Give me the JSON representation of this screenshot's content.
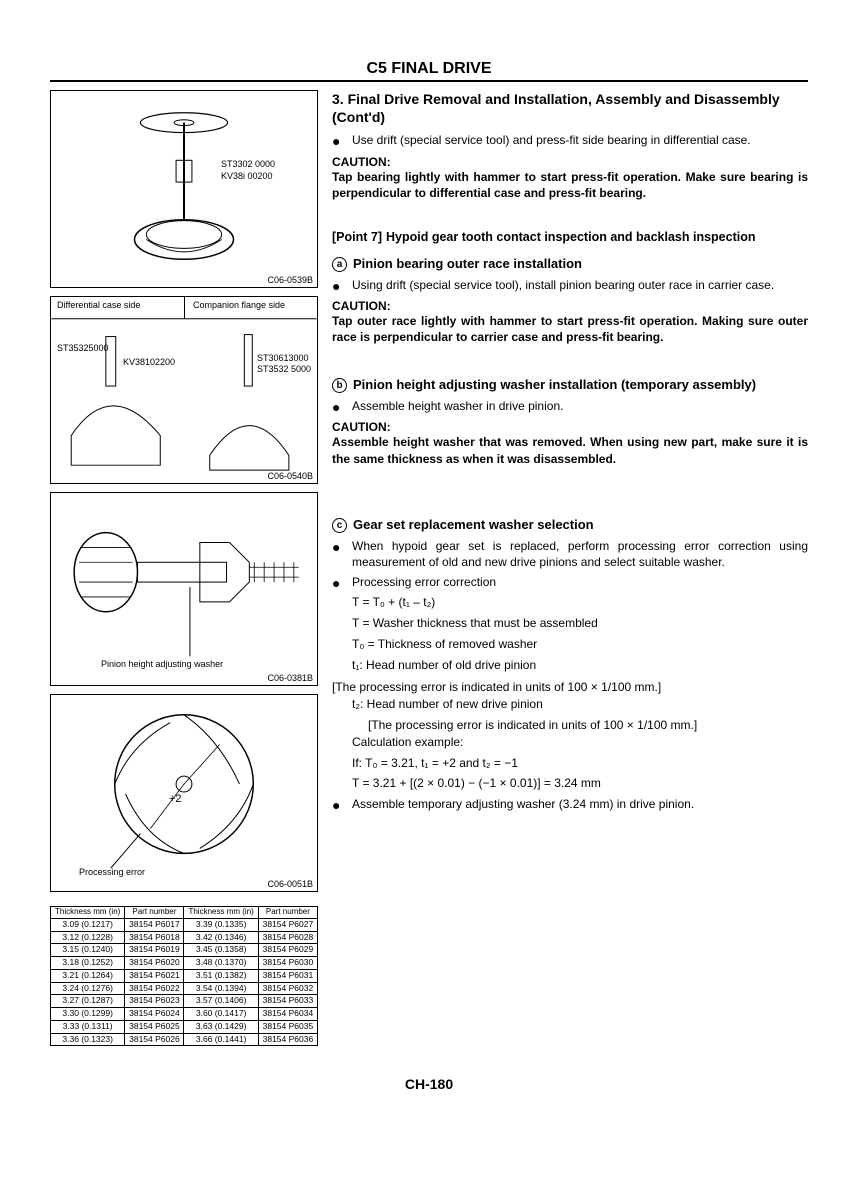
{
  "header": "C5 FINAL DRIVE",
  "title": "3. Final Drive Removal and Installation, Assembly and Disassembly (Cont'd)",
  "intro_bullet": "Use drift (special service tool) and press-fit side bearing in differential case.",
  "caution_label": "CAUTION:",
  "intro_caution": "Tap bearing lightly with hammer to start press-fit operation. Make sure bearing is perpendicular to differential case and press-fit bearing.",
  "point7": {
    "label": "[Point 7]",
    "title": "Hypoid gear tooth contact inspection and backlash inspection"
  },
  "sec_a": {
    "letter": "a",
    "title": "Pinion bearing outer race installation",
    "bullet": "Using drift (special service tool), install pinion bearing outer race in carrier case.",
    "caution": "Tap outer race lightly with hammer to start press-fit operation. Making sure outer race is perpendicular to carrier case and press-fit bearing."
  },
  "sec_b": {
    "letter": "b",
    "title": "Pinion height adjusting washer installation (temporary assembly)",
    "bullet": "Assemble height washer in drive pinion.",
    "caution": "Assemble height washer that was removed. When using new part, make sure it is the same thickness as when it was disassembled."
  },
  "sec_c": {
    "letter": "c",
    "title": "Gear set replacement washer selection",
    "bullet1": "When hypoid gear set is replaced, perform processing error correction using measurement of old and new drive pinions and select suitable washer.",
    "bullet2_label": "Processing error correction",
    "formula1": "T = T₀ + (t₁ – t₂)",
    "formula2": "T = Washer thickness that must be assembled",
    "formula3": "T₀ = Thickness of removed washer",
    "formula4": "t₁: Head number of old drive pinion",
    "bracket1": "[The processing error is indicated in units of 100 × 1/100 mm.]",
    "formula5": "t₂: Head number of new drive pinion",
    "bracket2": "[The processing error is indicated in units of 100 × 1/100 mm.]",
    "calc_label": "Calculation example:",
    "calc1": "If: T₀ = 3.21, t₁ = +2 and t₂ = −1",
    "calc2": "T = 3.21 + [(2 × 0.01) − (−1 × 0.01)] = 3.24 mm",
    "bullet3": "Assemble temporary adjusting washer (3.24 mm) in drive pinion."
  },
  "fig1": {
    "code": "C06-0539B",
    "label1": "ST3302 0000",
    "label2": "KV38i 00200"
  },
  "fig2": {
    "code": "C06-0540B",
    "hdr_left": "Differential case side",
    "hdr_right": "Companion flange side",
    "lbl1": "ST35325000",
    "lbl2": "KV38102200",
    "lbl3": "ST30613000",
    "lbl4": "ST3532 5000"
  },
  "fig3": {
    "code": "C06-0381B",
    "label": "Pinion height adjusting washer"
  },
  "fig4": {
    "code": "C06-0051B",
    "label1": "+2",
    "label2": "Processing error"
  },
  "table": {
    "headers": [
      "Thickness mm (in)",
      "Part number",
      "Thickness mm (in)",
      "Part number"
    ],
    "rows": [
      [
        "3.09 (0.1217)",
        "38154 P6017",
        "3.39 (0.1335)",
        "38154 P6027"
      ],
      [
        "3.12 (0.1228)",
        "38154 P6018",
        "3.42 (0.1346)",
        "38154 P6028"
      ],
      [
        "3.15 (0.1240)",
        "38154 P6019",
        "3.45 (0.1358)",
        "38154 P6029"
      ],
      [
        "3.18 (0.1252)",
        "38154 P6020",
        "3.48 (0.1370)",
        "38154 P6030"
      ],
      [
        "3.21 (0.1264)",
        "38154 P6021",
        "3.51 (0.1382)",
        "38154 P6031"
      ],
      [
        "3.24 (0.1276)",
        "38154 P6022",
        "3.54 (0.1394)",
        "38154 P6032"
      ],
      [
        "3.27 (0.1287)",
        "38154 P6023",
        "3.57 (0.1406)",
        "38154 P6033"
      ],
      [
        "3.30 (0.1299)",
        "38154 P6024",
        "3.60 (0.1417)",
        "38154 P6034"
      ],
      [
        "3.33 (0.1311)",
        "38154 P6025",
        "3.63 (0.1429)",
        "38154 P6035"
      ],
      [
        "3.36 (0.1323)",
        "38154 P6026",
        "3.66 (0.1441)",
        "38154 P6036"
      ]
    ]
  },
  "page_number": "CH-180"
}
